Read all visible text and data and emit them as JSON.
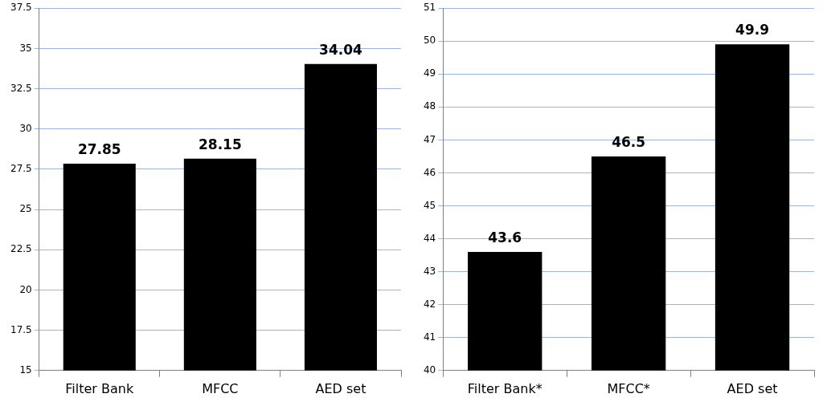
{
  "chart_data": [
    {
      "type": "bar",
      "categories": [
        "Filter Bank",
        "MFCC",
        "AED set"
      ],
      "values": [
        27.85,
        28.15,
        34.04
      ],
      "color": "#000000",
      "ylim": [
        15,
        37.5
      ],
      "yticks": [
        15,
        17.5,
        20,
        22.5,
        25,
        27.5,
        30,
        32.5,
        35,
        37.5
      ],
      "grid": "y",
      "data_labels": true,
      "legend": false
    },
    {
      "type": "bar",
      "categories": [
        "Filter Bank*",
        "MFCC*",
        "AED set"
      ],
      "values": [
        43.6,
        46.5,
        49.9
      ],
      "color": "#000000",
      "ylim": [
        40,
        51
      ],
      "yticks": [
        40,
        41,
        42,
        43,
        44,
        45,
        46,
        47,
        48,
        49,
        50,
        51
      ],
      "grid": "y",
      "data_labels": true,
      "legend": false
    }
  ]
}
